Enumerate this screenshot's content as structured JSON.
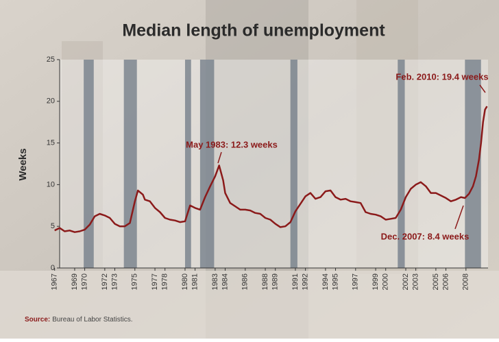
{
  "chart_data": {
    "type": "line",
    "title": "Median length of unemployment",
    "y_label": "Weeks",
    "source_label": "Source:",
    "source": "Bureau of Labor Statistics.",
    "annotations": [
      "May 1983: 12.3 weeks",
      "Feb. 2010: 19.4 weeks",
      "Dec. 2007: 8.4 weeks"
    ],
    "xlim": [
      1967.5,
      2010.2
    ],
    "ylim": [
      0,
      25
    ],
    "yticks": [
      0,
      5,
      10,
      15,
      20,
      25
    ],
    "xticks": [
      1967,
      1969,
      1970,
      1972,
      1973,
      1975,
      1977,
      1978,
      1980,
      1981,
      1983,
      1984,
      1986,
      1988,
      1989,
      1991,
      1992,
      1994,
      1995,
      1997,
      1999,
      2000,
      2002,
      2003,
      2005,
      2006,
      2008
    ],
    "recessions": [
      [
        1969.9,
        1970.9
      ],
      [
        1973.9,
        1975.2
      ],
      [
        1980.0,
        1980.6
      ],
      [
        1981.5,
        1982.9
      ],
      [
        1990.5,
        1991.2
      ],
      [
        2001.2,
        2001.9
      ],
      [
        2007.9,
        2009.5
      ]
    ],
    "recession_color": "#6f7a86",
    "series": [
      {
        "color": "#8b1a1a",
        "x": [
          1967.0,
          1967.5,
          1968.0,
          1968.5,
          1969.0,
          1969.5,
          1970.0,
          1970.5,
          1971.0,
          1971.5,
          1972.0,
          1972.5,
          1973.0,
          1973.5,
          1974.0,
          1974.5,
          1975.0,
          1975.3,
          1975.8,
          1976.0,
          1976.5,
          1977.0,
          1977.5,
          1978.0,
          1978.5,
          1979.0,
          1979.5,
          1980.0,
          1980.5,
          1981.0,
          1981.5,
          1982.0,
          1982.5,
          1983.0,
          1983.4,
          1983.8,
          1984.0,
          1984.5,
          1985.0,
          1985.5,
          1986.0,
          1986.5,
          1987.0,
          1987.5,
          1988.0,
          1988.5,
          1989.0,
          1989.5,
          1990.0,
          1990.5,
          1991.0,
          1991.5,
          1992.0,
          1992.5,
          1993.0,
          1993.5,
          1994.0,
          1994.5,
          1995.0,
          1995.5,
          1996.0,
          1996.5,
          1997.0,
          1997.5,
          1998.0,
          1998.5,
          1999.0,
          1999.5,
          2000.0,
          2000.5,
          2001.0,
          2001.5,
          2002.0,
          2002.5,
          2003.0,
          2003.5,
          2004.0,
          2004.5,
          2005.0,
          2005.5,
          2006.0,
          2006.5,
          2007.0,
          2007.5,
          2007.9,
          2008.3,
          2008.7,
          2009.0,
          2009.3,
          2009.5,
          2009.7,
          2009.9,
          2010.1
        ],
        "values": [
          4.5,
          4.8,
          4.4,
          4.5,
          4.3,
          4.4,
          4.6,
          5.2,
          6.2,
          6.5,
          6.3,
          6.0,
          5.3,
          5.0,
          5.0,
          5.4,
          8.0,
          9.3,
          8.8,
          8.2,
          8.0,
          7.2,
          6.7,
          6.0,
          5.8,
          5.7,
          5.5,
          5.6,
          7.5,
          7.2,
          7.0,
          8.5,
          9.8,
          11.0,
          12.3,
          10.5,
          9.0,
          7.8,
          7.4,
          7.0,
          7.0,
          6.9,
          6.6,
          6.5,
          6.0,
          5.8,
          5.3,
          4.9,
          5.0,
          5.5,
          6.8,
          7.7,
          8.6,
          9.0,
          8.3,
          8.5,
          9.2,
          9.3,
          8.5,
          8.2,
          8.3,
          8.0,
          7.9,
          7.8,
          6.7,
          6.5,
          6.4,
          6.2,
          5.8,
          5.9,
          6.0,
          7.0,
          8.5,
          9.5,
          10.0,
          10.3,
          9.8,
          9.0,
          9.0,
          8.7,
          8.4,
          8.0,
          8.2,
          8.5,
          8.4,
          8.9,
          9.8,
          11.0,
          13.0,
          15.0,
          17.5,
          19.0,
          19.4
        ]
      }
    ]
  }
}
